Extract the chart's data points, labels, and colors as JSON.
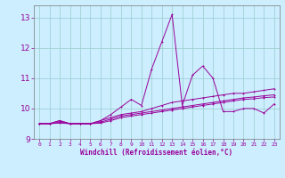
{
  "xlabel": "Windchill (Refroidissement éolien,°C)",
  "x_values": [
    0,
    1,
    2,
    3,
    4,
    5,
    6,
    7,
    8,
    9,
    10,
    11,
    12,
    13,
    14,
    15,
    16,
    17,
    18,
    19,
    20,
    21,
    22,
    23
  ],
  "lines": [
    [
      9.5,
      9.5,
      9.6,
      9.5,
      9.5,
      9.5,
      9.6,
      9.8,
      10.05,
      10.3,
      10.1,
      11.3,
      12.2,
      13.1,
      10.1,
      11.1,
      11.4,
      11.0,
      9.9,
      9.9,
      10.0,
      10.0,
      9.85,
      10.15
    ],
    [
      9.5,
      9.5,
      9.6,
      9.5,
      9.5,
      9.5,
      9.6,
      9.7,
      9.8,
      9.85,
      9.9,
      10.0,
      10.1,
      10.2,
      10.25,
      10.3,
      10.35,
      10.4,
      10.45,
      10.5,
      10.5,
      10.55,
      10.6,
      10.65
    ],
    [
      9.5,
      9.5,
      9.55,
      9.5,
      9.5,
      9.5,
      9.55,
      9.65,
      9.75,
      9.8,
      9.85,
      9.9,
      9.95,
      10.0,
      10.05,
      10.1,
      10.15,
      10.2,
      10.25,
      10.3,
      10.35,
      10.38,
      10.42,
      10.45
    ],
    [
      9.5,
      9.5,
      9.52,
      9.5,
      9.5,
      9.5,
      9.52,
      9.6,
      9.7,
      9.75,
      9.8,
      9.85,
      9.9,
      9.95,
      10.0,
      10.05,
      10.1,
      10.15,
      10.2,
      10.25,
      10.3,
      10.32,
      10.36,
      10.38
    ]
  ],
  "line_color": "#990099",
  "bg_color": "#cceeff",
  "grid_color": "#99cccc",
  "ylim": [
    9.0,
    13.4
  ],
  "yticks": [
    9,
    10,
    11,
    12,
    13
  ],
  "markersize": 2.0
}
